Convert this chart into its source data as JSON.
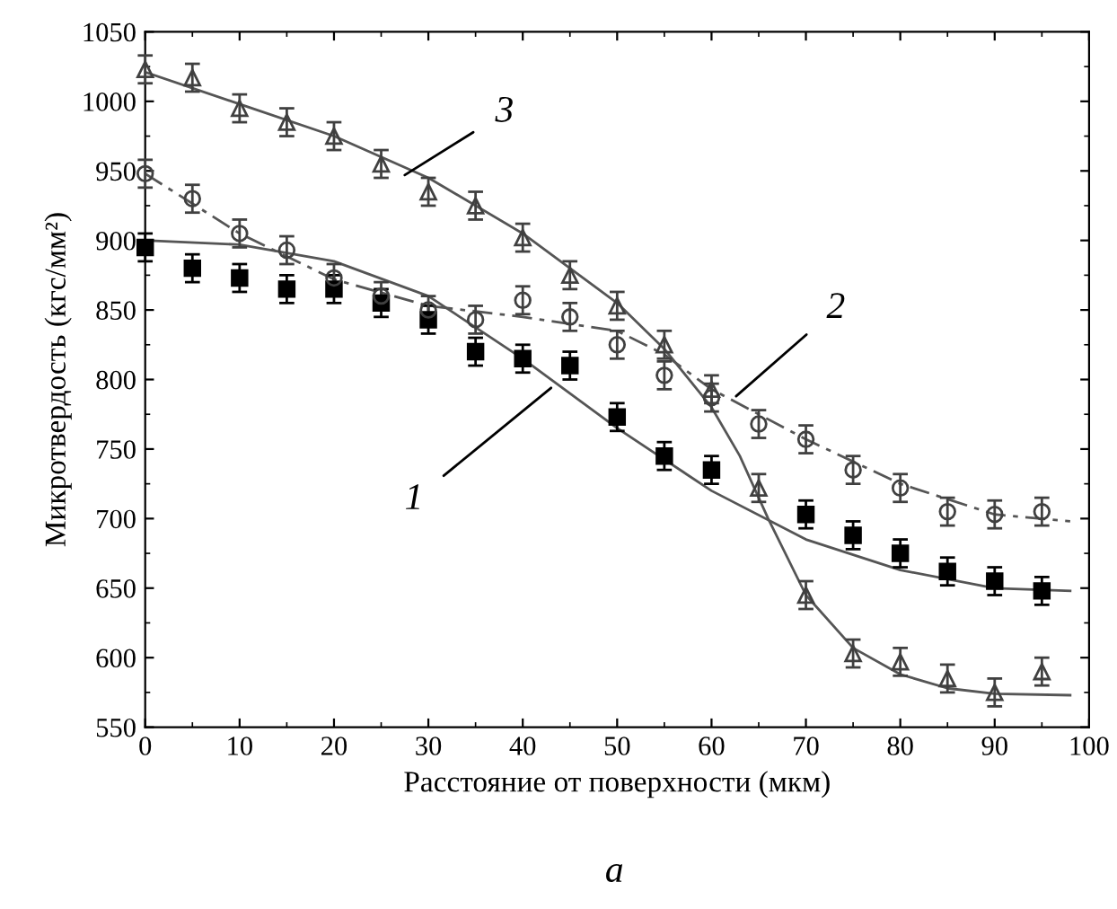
{
  "chart_data": {
    "type": "scatter",
    "xlabel": "Расстояние от поверхности (мкм)",
    "ylabel": "Микротвердость (кгс/мм²)",
    "x": [
      0,
      5,
      10,
      15,
      20,
      25,
      30,
      35,
      40,
      45,
      50,
      55,
      60,
      65,
      70,
      75,
      80,
      85,
      90,
      95
    ],
    "series": [
      {
        "marker": "square",
        "color": "#000000",
        "values": [
          895,
          880,
          873,
          865,
          865,
          855,
          843,
          820,
          815,
          810,
          773,
          745,
          735,
          null,
          703,
          688,
          675,
          662,
          655,
          648
        ],
        "errors": [
          10,
          10,
          10,
          10,
          10,
          10,
          10,
          10,
          10,
          10,
          10,
          10,
          10,
          null,
          10,
          10,
          10,
          10,
          10,
          10
        ]
      },
      {
        "marker": "circle",
        "color": "#404040",
        "values": [
          948,
          930,
          905,
          893,
          873,
          860,
          850,
          843,
          857,
          845,
          825,
          803,
          787,
          768,
          757,
          735,
          722,
          705,
          703,
          705
        ],
        "errors": [
          10,
          10,
          10,
          10,
          10,
          10,
          10,
          10,
          10,
          10,
          10,
          10,
          10,
          10,
          10,
          10,
          10,
          10,
          10,
          10
        ]
      },
      {
        "marker": "triangle",
        "color": "#404040",
        "values": [
          1023,
          1017,
          995,
          985,
          975,
          955,
          935,
          925,
          902,
          875,
          853,
          825,
          793,
          722,
          645,
          603,
          597,
          585,
          575,
          590
        ],
        "errors": [
          10,
          10,
          10,
          10,
          10,
          10,
          10,
          10,
          10,
          10,
          10,
          10,
          10,
          10,
          10,
          10,
          10,
          10,
          10,
          10
        ]
      },
      {
        "type": "line",
        "line_style": "solid",
        "color": "#555555",
        "x": [
          0,
          10,
          20,
          30,
          40,
          50,
          60,
          70,
          80,
          90,
          98
        ],
        "values": [
          900,
          897,
          885,
          860,
          815,
          765,
          720,
          685,
          663,
          650,
          648
        ]
      },
      {
        "type": "line",
        "line_style": "dashed",
        "color": "#555555",
        "x": [
          0,
          10,
          20,
          30,
          40,
          50,
          55,
          60,
          70,
          80,
          90,
          98
        ],
        "values": [
          948,
          905,
          872,
          853,
          845,
          835,
          818,
          793,
          757,
          725,
          703,
          698
        ]
      },
      {
        "type": "line",
        "line_style": "solid",
        "color": "#555555",
        "x": [
          0,
          10,
          20,
          30,
          40,
          50,
          55,
          60,
          63,
          66,
          70,
          75,
          80,
          85,
          90,
          98
        ],
        "values": [
          1021,
          998,
          975,
          945,
          905,
          855,
          822,
          780,
          745,
          700,
          645,
          607,
          588,
          578,
          574,
          573
        ]
      }
    ],
    "xlim": [
      0,
      100
    ],
    "xticks": [
      0,
      10,
      20,
      30,
      40,
      50,
      60,
      70,
      80,
      90,
      100
    ],
    "ylim": [
      550,
      1050
    ],
    "yticks": [
      550,
      600,
      650,
      700,
      750,
      800,
      850,
      900,
      950,
      1000,
      1050
    ],
    "grid": false,
    "annotations": [
      {
        "text": "1",
        "x": 43,
        "y": 794
      },
      {
        "text": "2",
        "x": 62.6,
        "y": 788
      },
      {
        "text": "3",
        "x": 27.5,
        "y": 947
      },
      "а"
    ]
  }
}
